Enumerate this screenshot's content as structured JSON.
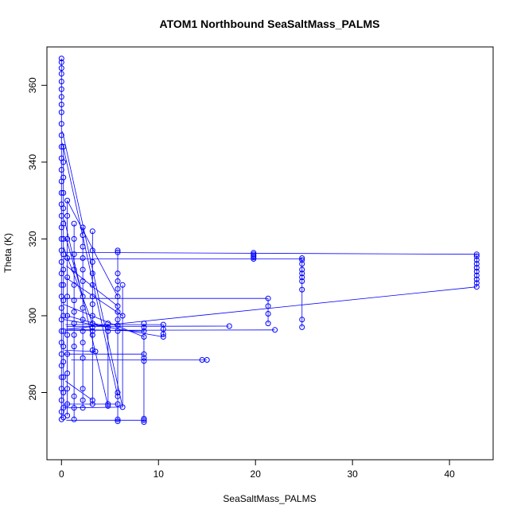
{
  "chart_data": {
    "type": "scatter",
    "title": "ATOM1 Northbound SeaSaltMass_PALMS",
    "xlabel": "SeaSaltMass_PALMS",
    "ylabel": "Theta (K)",
    "xlim": [
      -1.5,
      44.5
    ],
    "ylim": [
      262.5,
      370
    ],
    "xticks": [
      0,
      10,
      20,
      30,
      40
    ],
    "yticks": [
      280,
      300,
      320,
      340,
      360
    ],
    "grid": false,
    "legend": "none",
    "marker": "open-circle",
    "connected": true,
    "color": "#0000ff",
    "clusters": [
      {
        "x": 42.8,
        "y": [
          307.5,
          308.5,
          309.5,
          310.5,
          311.5,
          312.5,
          313.5,
          314.5,
          315.5,
          316.0
        ]
      },
      {
        "x": 24.8,
        "y": [
          297.0,
          299.0,
          306.8,
          309.0,
          310.0,
          311.0,
          312.0,
          313.5,
          314.5,
          315.0
        ]
      },
      {
        "x": 21.3,
        "y": [
          298.0,
          300.5,
          302.5,
          304.5
        ]
      },
      {
        "x": 19.8,
        "y": [
          314.8,
          315.2,
          315.6,
          316.0,
          316.4
        ]
      },
      {
        "x": 22.0,
        "y": [
          296.3
        ]
      },
      {
        "x": 17.3,
        "y": [
          297.3
        ]
      },
      {
        "x": 15.0,
        "y": [
          288.5
        ]
      },
      {
        "x": 14.5,
        "y": [
          288.5
        ]
      },
      {
        "x": 10.5,
        "y": [
          294.5,
          295.2,
          296.5,
          297.7
        ]
      },
      {
        "x": 8.5,
        "y": [
          272.3,
          272.8,
          273.2,
          288.2,
          289.0,
          290.0,
          294.5,
          296.0,
          297.0,
          298.0
        ]
      },
      {
        "x": 5.8,
        "y": [
          272.5,
          273.0,
          277.0,
          279.0,
          280.0,
          296.0,
          297.5,
          299.0,
          301.0,
          302.5,
          305.0,
          307.0,
          309.0,
          311.0,
          316.5,
          317.0
        ]
      },
      {
        "x": 6.3,
        "y": [
          276.2,
          300.0,
          308.0
        ]
      },
      {
        "x": 4.8,
        "y": [
          276.5,
          277.0,
          296.0,
          297.0,
          298.0
        ]
      },
      {
        "x": 3.5,
        "y": [
          290.7
        ]
      },
      {
        "x": 3.2,
        "y": [
          277.0,
          278.0,
          291.0,
          295.0,
          296.0,
          297.0,
          298.0,
          300.0,
          303.0,
          305.0,
          308.0,
          311.0,
          314.0,
          317.0,
          322.0
        ]
      },
      {
        "x": 2.2,
        "y": [
          276.0,
          278.0,
          281.0,
          289.0,
          293.0,
          296.0,
          299.0,
          302.0,
          305.0,
          309.0,
          312.0,
          315.0,
          318.0,
          321.0,
          323.0
        ]
      },
      {
        "x": 1.3,
        "y": [
          273.0,
          276.0,
          279.0,
          292.0,
          295.0,
          298.0,
          301.0,
          304.0,
          308.0,
          312.0,
          316.0,
          320.0,
          324.0
        ]
      },
      {
        "x": 0.6,
        "y": [
          274.0,
          277.0,
          281.0,
          285.0,
          290.0,
          295.0,
          300.0,
          305.0,
          310.0,
          315.0,
          320.0,
          326.0,
          330.0
        ]
      },
      {
        "x": 0.2,
        "y": [
          273.5,
          276.0,
          280.0,
          284.0,
          288.0,
          292.0,
          296.0,
          300.0,
          304.0,
          308.0,
          312.0,
          316.0,
          320.0,
          324.0,
          328.0,
          332.0,
          336.0,
          340.0,
          344.0
        ]
      },
      {
        "x": 0.0,
        "y": [
          273.0,
          275.0,
          278.0,
          281.0,
          284.0,
          287.0,
          290.0,
          293.0,
          296.0,
          299.0,
          302.0,
          305.0,
          308.0,
          311.0,
          314.0,
          317.0,
          320.0,
          323.0,
          326.0,
          329.0,
          332.0,
          335.0,
          338.0,
          341.0,
          344.0,
          347.0,
          350.0,
          353.0,
          355.0,
          357.0,
          359.0,
          361.0,
          363.0,
          364.5,
          366.0,
          367.0
        ]
      }
    ],
    "connectors": [
      {
        "x": [
          0.3,
          42.8
        ],
        "y": [
          316.5,
          316.0
        ]
      },
      {
        "x": [
          0.5,
          42.8
        ],
        "y": [
          296.5,
          307.5
        ]
      },
      {
        "x": [
          0.2,
          24.8
        ],
        "y": [
          314.8,
          314.8
        ]
      },
      {
        "x": [
          0.4,
          22.0
        ],
        "y": [
          296.2,
          296.3
        ]
      },
      {
        "x": [
          0.3,
          21.3
        ],
        "y": [
          304.5,
          304.5
        ]
      },
      {
        "x": [
          0.5,
          17.3
        ],
        "y": [
          297.2,
          297.3
        ]
      },
      {
        "x": [
          1.0,
          15.0
        ],
        "y": [
          288.5,
          288.5
        ]
      },
      {
        "x": [
          0.4,
          10.5
        ],
        "y": [
          297.7,
          297.7
        ]
      },
      {
        "x": [
          0.5,
          8.5
        ],
        "y": [
          272.8,
          272.8
        ]
      },
      {
        "x": [
          0.2,
          8.5
        ],
        "y": [
          290.0,
          290.0
        ]
      },
      {
        "x": [
          0.1,
          6.3
        ],
        "y": [
          348.0,
          276.2
        ]
      },
      {
        "x": [
          0.1,
          5.8
        ],
        "y": [
          345.0,
          279.0
        ]
      },
      {
        "x": [
          0.6,
          5.8
        ],
        "y": [
          330.0,
          305.0
        ]
      },
      {
        "x": [
          0.3,
          4.8
        ],
        "y": [
          325.0,
          276.5
        ]
      },
      {
        "x": [
          0.2,
          3.2
        ],
        "y": [
          318.0,
          298.0
        ]
      },
      {
        "x": [
          0.4,
          6.3
        ],
        "y": [
          310.0,
          300.0
        ]
      },
      {
        "x": [
          0.2,
          8.5
        ],
        "y": [
          303.0,
          294.5
        ]
      },
      {
        "x": [
          0.6,
          4.8
        ],
        "y": [
          300.0,
          297.0
        ]
      },
      {
        "x": [
          0.5,
          2.2
        ],
        "y": [
          320.0,
          305.0
        ]
      },
      {
        "x": [
          0.3,
          10.5
        ],
        "y": [
          299.0,
          294.5
        ]
      },
      {
        "x": [
          0.5,
          5.8
        ],
        "y": [
          313.0,
          302.5
        ]
      },
      {
        "x": [
          0.4,
          3.2
        ],
        "y": [
          283.0,
          278.0
        ]
      },
      {
        "x": [
          0.2,
          5.8
        ],
        "y": [
          277.0,
          277.0
        ]
      },
      {
        "x": [
          0.2,
          6.3
        ],
        "y": [
          276.0,
          276.2
        ]
      },
      {
        "x": [
          0.3,
          3.5
        ],
        "y": [
          291.0,
          290.7
        ]
      },
      {
        "x": [
          0.4,
          8.5
        ],
        "y": [
          296.5,
          296.0
        ]
      }
    ]
  }
}
